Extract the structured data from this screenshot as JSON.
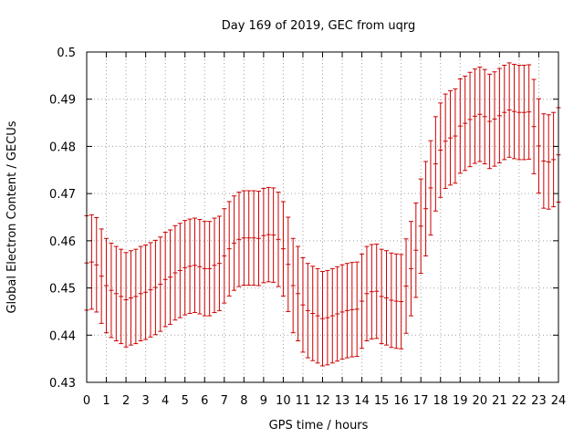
{
  "chart_data": {
    "type": "scatter",
    "title": "Day 169 of 2019, GEC from uqrg",
    "xlabel": "GPS time / hours",
    "ylabel": "Global Electron Content / GECUs",
    "xlim": [
      0,
      24
    ],
    "ylim": [
      0.43,
      0.5
    ],
    "grid": true,
    "series_color": "#cc0000",
    "x_ticks": [
      0,
      1,
      2,
      3,
      4,
      5,
      6,
      7,
      8,
      9,
      10,
      11,
      12,
      13,
      14,
      15,
      16,
      17,
      18,
      19,
      20,
      21,
      22,
      23,
      24
    ],
    "y_ticks": [
      0.43,
      0.44,
      0.45,
      0.46,
      0.47,
      0.48,
      0.49,
      0.5
    ],
    "error": 0.01,
    "x": [
      0,
      0.25,
      0.5,
      0.75,
      1,
      1.25,
      1.5,
      1.75,
      2,
      2.25,
      2.5,
      2.75,
      3,
      3.25,
      3.5,
      3.75,
      4,
      4.25,
      4.5,
      4.75,
      5,
      5.25,
      5.5,
      5.75,
      6,
      6.25,
      6.5,
      6.75,
      7,
      7.25,
      7.5,
      7.75,
      8,
      8.25,
      8.5,
      8.75,
      9,
      9.25,
      9.5,
      9.75,
      10,
      10.25,
      10.5,
      10.75,
      11,
      11.25,
      11.5,
      11.75,
      12,
      12.25,
      12.5,
      12.75,
      13,
      13.25,
      13.5,
      13.75,
      14,
      14.25,
      14.5,
      14.75,
      15,
      15.25,
      15.5,
      15.75,
      16,
      16.25,
      16.5,
      16.75,
      17,
      17.25,
      17.5,
      17.75,
      18,
      18.25,
      18.5,
      18.75,
      19,
      19.25,
      19.5,
      19.75,
      20,
      20.25,
      20.5,
      20.75,
      21,
      21.25,
      21.5,
      21.75,
      22,
      22.25,
      22.5,
      22.75,
      23,
      23.25,
      23.5,
      23.75,
      24
    ],
    "y": [
      0.4553,
      0.4555,
      0.4549,
      0.4525,
      0.4505,
      0.4495,
      0.4488,
      0.4482,
      0.4475,
      0.4479,
      0.4482,
      0.4488,
      0.4491,
      0.4496,
      0.4501,
      0.4508,
      0.4518,
      0.4523,
      0.4532,
      0.4537,
      0.4543,
      0.4546,
      0.4548,
      0.4545,
      0.4541,
      0.4541,
      0.4548,
      0.4552,
      0.4568,
      0.4583,
      0.4595,
      0.4603,
      0.4606,
      0.4606,
      0.4606,
      0.4605,
      0.4611,
      0.4613,
      0.4612,
      0.4603,
      0.4583,
      0.455,
      0.4505,
      0.4488,
      0.4464,
      0.4452,
      0.4446,
      0.4441,
      0.4435,
      0.4437,
      0.4441,
      0.4445,
      0.4449,
      0.4452,
      0.4454,
      0.4455,
      0.4472,
      0.4488,
      0.4492,
      0.4493,
      0.4482,
      0.4479,
      0.4474,
      0.4472,
      0.4471,
      0.4504,
      0.4541,
      0.458,
      0.4631,
      0.4668,
      0.4712,
      0.4763,
      0.4792,
      0.4811,
      0.4818,
      0.4822,
      0.4843,
      0.4849,
      0.4857,
      0.4864,
      0.4868,
      0.4863,
      0.4853,
      0.4858,
      0.4865,
      0.4872,
      0.4877,
      0.4874,
      0.4872,
      0.4872,
      0.4873,
      0.4842,
      0.4801,
      0.4769,
      0.4767,
      0.4772,
      0.4782
    ]
  }
}
